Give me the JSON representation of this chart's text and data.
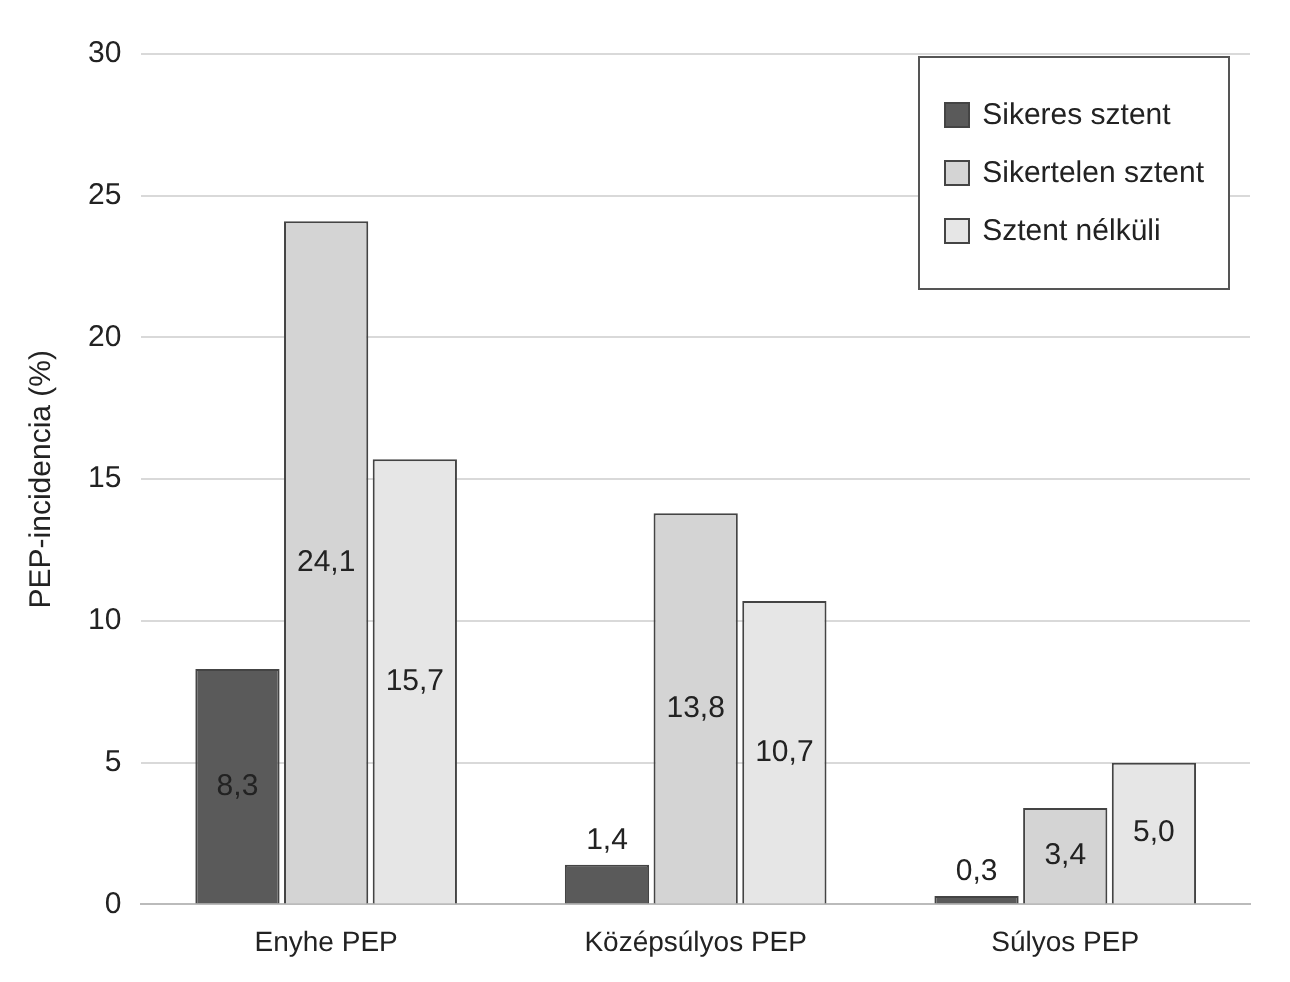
{
  "chart_data": {
    "type": "bar",
    "ylabel": "PEP-incidencia (%)",
    "categories": [
      "Enyhe PEP",
      "Középsúlyos PEP",
      "Súlyos PEP"
    ],
    "series": [
      {
        "name": "Sikeres sztent",
        "color": "#5a5a5a",
        "values": [
          8.3,
          1.4,
          0.3
        ],
        "value_labels": [
          "8,3",
          "1,4",
          "0,3"
        ]
      },
      {
        "name": "Sikertelen sztent",
        "color": "#d4d4d4",
        "values": [
          24.1,
          13.8,
          3.4
        ],
        "value_labels": [
          "24,1",
          "13,8",
          "3,4"
        ]
      },
      {
        "name": "Sztent nélküli",
        "color": "#e6e6e6",
        "values": [
          15.7,
          10.7,
          5.0
        ],
        "value_labels": [
          "15,7",
          "10,7",
          "5,0"
        ]
      }
    ],
    "ylim": [
      0,
      30
    ],
    "yticks": [
      0,
      5,
      10,
      15,
      20,
      25,
      30
    ],
    "grid": "y",
    "legend": "top right"
  }
}
